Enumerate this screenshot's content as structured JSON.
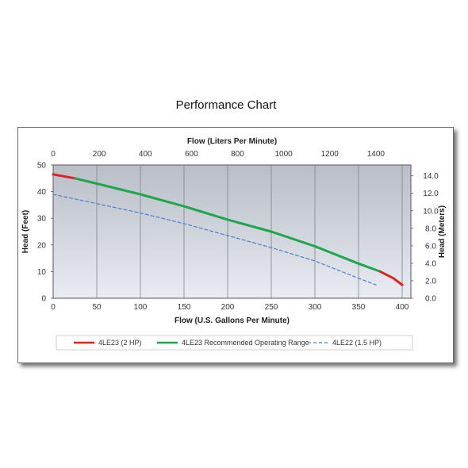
{
  "page": {
    "title": "Performance Chart"
  },
  "chart_data": {
    "type": "line",
    "title": "Performance Chart",
    "xlabel": "Flow (U.S. Gallons Per Minute)",
    "x2label": "Flow (Liters Per Minute)",
    "ylabel": "Head (Feet)",
    "y2label": "Head (Meters)",
    "xlim": [
      0,
      410
    ],
    "ylim": [
      0,
      50
    ],
    "x2lim": [
      0,
      1552
    ],
    "y2lim": [
      0,
      15.24
    ],
    "x_ticks": [
      "0",
      "50",
      "100",
      "150",
      "200",
      "250",
      "300",
      "350",
      "400"
    ],
    "y_ticks": [
      "0",
      "10",
      "20",
      "30",
      "40",
      "50"
    ],
    "x2_ticks": [
      "0",
      "200",
      "400",
      "600",
      "800",
      "1000",
      "1200",
      "1400"
    ],
    "y2_ticks": [
      "0.0",
      "2.0",
      "4.0",
      "6.0",
      "8.0",
      "10.0",
      "12.0",
      "14.0"
    ],
    "grid": "vertical",
    "legend_position": "bottom",
    "series": [
      {
        "name": "4LE23 (2 HP)",
        "color": "#e0201e",
        "style": "solid",
        "x": [
          0,
          25
        ],
        "y": [
          46.5,
          45
        ]
      },
      {
        "name": "4LE23 Recommended Operating Range",
        "color": "#1fa64a",
        "style": "solid",
        "x": [
          25,
          50,
          100,
          150,
          200,
          250,
          300,
          350,
          375
        ],
        "y": [
          45,
          43,
          39,
          34.5,
          29.5,
          25,
          19.5,
          13,
          10
        ]
      },
      {
        "name": "4LE23 (2 HP)",
        "color": "#e0201e",
        "style": "solid",
        "x": [
          375,
          390,
          400
        ],
        "y": [
          10,
          7.5,
          5
        ]
      },
      {
        "name": "4LE22 (1.5 HP)",
        "color": "#4a7fd0",
        "style": "dashed",
        "x": [
          0,
          50,
          100,
          150,
          200,
          250,
          300,
          350,
          370
        ],
        "y": [
          39,
          35.5,
          32,
          28,
          23.5,
          19,
          14,
          7.5,
          5
        ]
      }
    ],
    "legend": [
      {
        "label": "4LE23 (2 HP)",
        "color": "#e0201e",
        "style": "solid"
      },
      {
        "label": "4LE23 Recommended Operating Range",
        "color": "#1fa64a",
        "style": "solid"
      },
      {
        "label": "4LE22 (1.5 HP)",
        "color": "#4a7fd0",
        "style": "dashed"
      }
    ]
  }
}
